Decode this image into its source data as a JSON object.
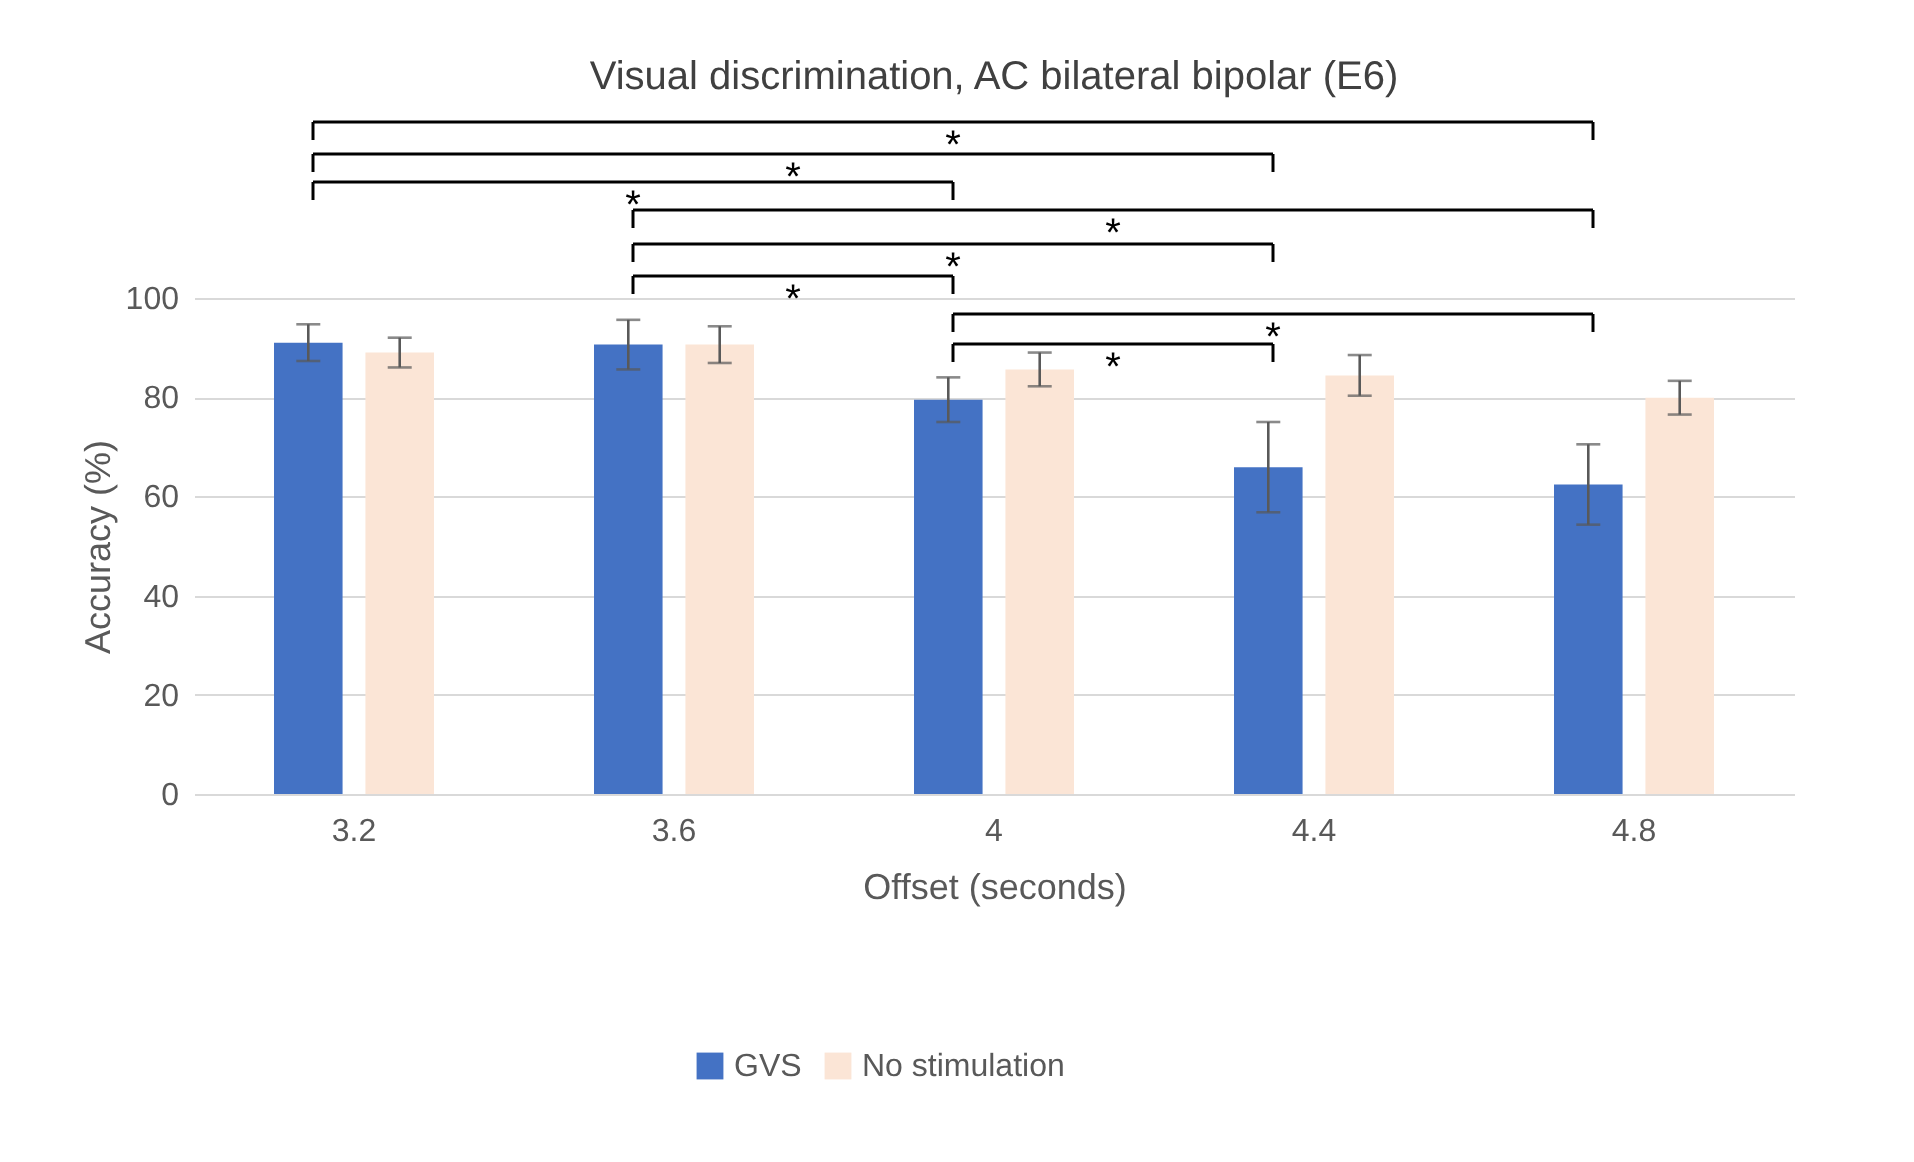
{
  "chart_data": {
    "type": "bar",
    "title": "Visual discrimination, AC bilateral bipolar (E6)",
    "xlabel": "Offset (seconds)",
    "ylabel": "Accuracy (%)",
    "categories": [
      "3.2",
      "3.6",
      "4",
      "4.4",
      "4.8"
    ],
    "series": [
      {
        "name": "GVS",
        "color": "#4472c4",
        "values": [
          91,
          90.6,
          79.5,
          65.9,
          62.4
        ],
        "errors": [
          3.7,
          5,
          4.5,
          9.1,
          8.1
        ]
      },
      {
        "name": "No stimulation",
        "color": "#fbe5d6",
        "values": [
          89,
          90.6,
          85.6,
          84.4,
          79.9
        ],
        "errors": [
          3,
          3.7,
          3.4,
          4.1,
          3.4
        ]
      }
    ],
    "ylim": [
      0,
      100
    ],
    "yticks": [
      0,
      20,
      40,
      60,
      80,
      100
    ],
    "grid": "y",
    "legend": "bottom",
    "annotations": [
      "*",
      "*",
      "*",
      "*",
      "*",
      "*",
      "*",
      "*"
    ]
  }
}
